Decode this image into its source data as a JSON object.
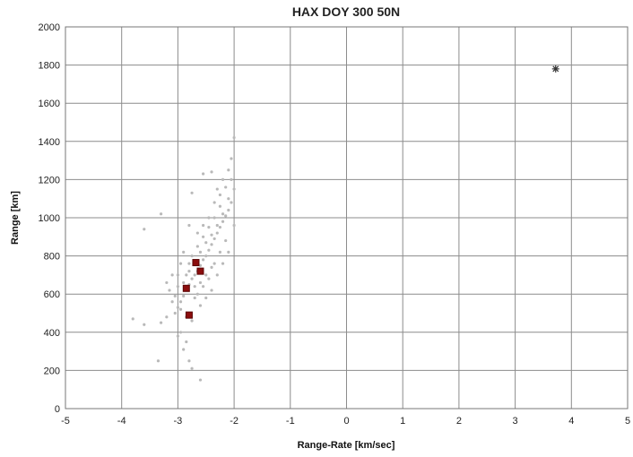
{
  "chart_data": {
    "type": "scatter",
    "title": "HAX DOY 300 50N",
    "xlabel": "Range-Rate [km/sec]",
    "ylabel": "Range [km]",
    "xlim": [
      -5,
      5
    ],
    "ylim": [
      0,
      2000
    ],
    "xticks": [
      -5,
      -4,
      -3,
      -2,
      -1,
      0,
      1,
      2,
      3,
      4,
      5
    ],
    "yticks": [
      0,
      200,
      400,
      600,
      800,
      1000,
      1200,
      1400,
      1600,
      1800,
      2000
    ],
    "grid": true,
    "legend": "none",
    "series": [
      {
        "marker": "dot",
        "color": "#b9b9b9",
        "points": [
          [
            -2.7,
            700
          ],
          [
            -2.65,
            720
          ],
          [
            -2.6,
            750
          ],
          [
            -2.55,
            780
          ],
          [
            -2.5,
            800
          ],
          [
            -2.45,
            830
          ],
          [
            -2.4,
            860
          ],
          [
            -2.35,
            890
          ],
          [
            -2.3,
            920
          ],
          [
            -2.25,
            950
          ],
          [
            -2.2,
            980
          ],
          [
            -2.15,
            1010
          ],
          [
            -2.1,
            1040
          ],
          [
            -2.05,
            1080
          ],
          [
            -2.0,
            1150
          ],
          [
            -2.75,
            680
          ],
          [
            -2.8,
            650
          ],
          [
            -2.85,
            620
          ],
          [
            -2.9,
            590
          ],
          [
            -2.95,
            560
          ],
          [
            -3.0,
            530
          ],
          [
            -3.05,
            500
          ],
          [
            -2.7,
            760
          ],
          [
            -2.6,
            820
          ],
          [
            -2.5,
            870
          ],
          [
            -2.4,
            910
          ],
          [
            -2.3,
            960
          ],
          [
            -2.2,
            1020
          ],
          [
            -2.1,
            1100
          ],
          [
            -2.8,
            720
          ],
          [
            -2.75,
            800
          ],
          [
            -2.65,
            850
          ],
          [
            -2.55,
            900
          ],
          [
            -2.45,
            950
          ],
          [
            -2.35,
            1000
          ],
          [
            -2.25,
            1060
          ],
          [
            -2.9,
            660
          ],
          [
            -2.85,
            700
          ],
          [
            -2.8,
            760
          ],
          [
            -2.7,
            640
          ],
          [
            -2.6,
            660
          ],
          [
            -2.5,
            700
          ],
          [
            -2.4,
            740
          ],
          [
            -3.1,
            560
          ],
          [
            -3.2,
            480
          ],
          [
            -3.3,
            450
          ],
          [
            -3.15,
            620
          ],
          [
            -3.0,
            700
          ],
          [
            -2.95,
            760
          ],
          [
            -2.9,
            820
          ],
          [
            -2.2,
            1200
          ],
          [
            -2.1,
            1250
          ],
          [
            -2.05,
            1310
          ],
          [
            -2.0,
            1420
          ],
          [
            -2.3,
            1150
          ],
          [
            -2.4,
            1240
          ],
          [
            -2.55,
            1230
          ],
          [
            -2.75,
            1130
          ],
          [
            -2.8,
            960
          ],
          [
            -3.3,
            1020
          ],
          [
            -3.6,
            940
          ],
          [
            -3.8,
            470
          ],
          [
            -3.6,
            440
          ],
          [
            -3.35,
            250
          ],
          [
            -2.9,
            310
          ],
          [
            -2.85,
            350
          ],
          [
            -2.8,
            250
          ],
          [
            -2.75,
            210
          ],
          [
            -2.6,
            150
          ],
          [
            -2.95,
            400
          ],
          [
            -3.0,
            380
          ],
          [
            -2.7,
            580
          ],
          [
            -2.65,
            600
          ],
          [
            -2.55,
            640
          ],
          [
            -2.45,
            680
          ],
          [
            -2.35,
            760
          ],
          [
            -2.25,
            820
          ],
          [
            -2.15,
            880
          ],
          [
            -2.6,
            540
          ],
          [
            -2.5,
            580
          ],
          [
            -2.4,
            620
          ],
          [
            -2.3,
            700
          ],
          [
            -2.2,
            760
          ],
          [
            -2.1,
            820
          ],
          [
            -2.0,
            960
          ],
          [
            -3.0,
            640
          ],
          [
            -3.1,
            700
          ],
          [
            -3.2,
            660
          ],
          [
            -3.05,
            590
          ],
          [
            -2.95,
            520
          ],
          [
            -2.85,
            480
          ],
          [
            -2.75,
            460
          ],
          [
            -2.65,
            920
          ],
          [
            -2.55,
            960
          ],
          [
            -2.45,
            1000
          ],
          [
            -2.35,
            1080
          ],
          [
            -2.25,
            1120
          ],
          [
            -2.15,
            1160
          ],
          [
            -2.05,
            1200
          ]
        ]
      },
      {
        "marker": "square",
        "color": "#8b0d0d",
        "points": [
          [
            -2.68,
            765
          ],
          [
            -2.6,
            720
          ],
          [
            -2.85,
            630
          ],
          [
            -2.8,
            490
          ]
        ]
      },
      {
        "marker": "star",
        "color": "#333333",
        "points": [
          [
            3.72,
            1780
          ]
        ]
      }
    ]
  }
}
